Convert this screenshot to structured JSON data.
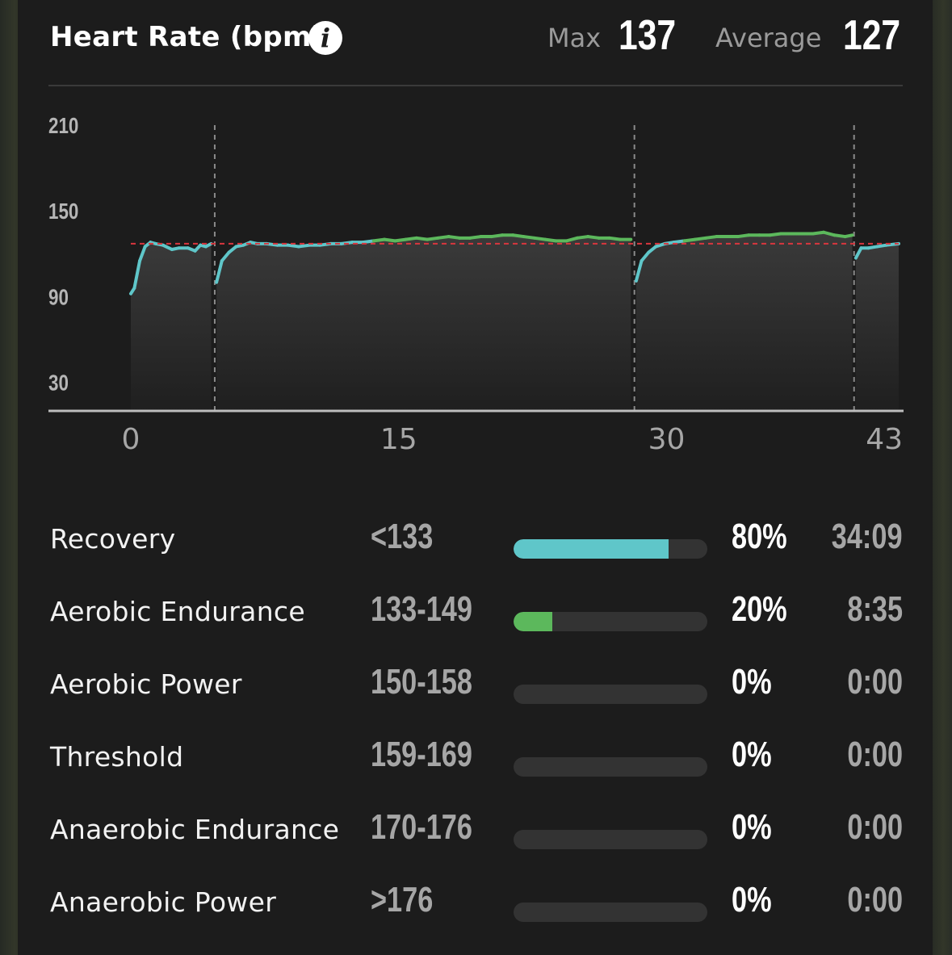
{
  "header": {
    "title": "Heart Rate (bpm)",
    "info_icon": "info-icon",
    "max_label": "Max",
    "max_value": "137",
    "average_label": "Average",
    "average_value": "127"
  },
  "chart_data": {
    "type": "line",
    "title": "Heart Rate (bpm)",
    "xlabel": "",
    "ylabel": "",
    "xlim": [
      0,
      43
    ],
    "ylim": [
      10,
      210
    ],
    "x_ticks": [
      0,
      15,
      30,
      43
    ],
    "y_ticks": [
      30,
      90,
      150,
      210
    ],
    "average_line": 127,
    "segment_breaks": [
      4.7,
      28.2,
      40.5
    ],
    "grid": false,
    "colors": {
      "below_133": "#5fc6c9",
      "aerobic_endurance": "#5cb85c",
      "average_line": "#d9363e"
    },
    "series": [
      {
        "x": [
          0,
          0.2,
          0.5,
          0.8,
          1.1,
          1.4,
          1.8,
          2.3,
          2.7,
          3.2,
          3.6,
          3.9,
          4.2,
          4.5,
          4.8,
          5.1,
          5.5,
          5.9,
          6.3,
          6.7,
          7.1,
          7.6,
          8.2,
          8.8,
          9.4,
          10,
          10.6,
          11.2,
          11.8,
          12.4,
          13,
          13.6,
          14.2,
          14.8,
          15.4,
          16,
          16.6,
          17.2,
          17.8,
          18.4,
          19,
          19.6,
          20.2,
          20.8,
          21.4,
          22,
          22.6,
          23.2,
          23.8,
          24.4,
          25,
          25.6,
          26.2,
          26.8,
          27.4,
          28,
          28.3,
          28.6,
          29,
          29.4,
          29.9,
          30.4,
          31,
          31.6,
          32.2,
          32.8,
          33.4,
          34,
          34.6,
          35.2,
          35.8,
          36.4,
          37,
          37.6,
          38.2,
          38.8,
          39.4,
          40,
          40.4,
          40.6,
          40.9,
          41.3,
          41.8,
          42.3,
          43
        ],
        "values": [
          92,
          96,
          115,
          125,
          128,
          127,
          126,
          123,
          124,
          124,
          122,
          126,
          125,
          127,
          100,
          115,
          121,
          125,
          126,
          128,
          127,
          127,
          126,
          126,
          125,
          126,
          126,
          127,
          127,
          128,
          128,
          129,
          130,
          129,
          130,
          131,
          130,
          131,
          132,
          131,
          131,
          132,
          132,
          133,
          133,
          132,
          131,
          130,
          129,
          129,
          131,
          132,
          131,
          131,
          130,
          130,
          101,
          115,
          121,
          125,
          127,
          128,
          129,
          130,
          131,
          132,
          132,
          132,
          133,
          133,
          133,
          134,
          134,
          134,
          134,
          135,
          133,
          132,
          133,
          117,
          124,
          124,
          125,
          126,
          127
        ]
      }
    ]
  },
  "zones": [
    {
      "name": "Recovery",
      "range": "<133",
      "fraction": 0.8,
      "percent": "80%",
      "time": "34:09",
      "color": "#5fc6c9"
    },
    {
      "name": "Aerobic Endurance",
      "range": "133-149",
      "fraction": 0.2,
      "percent": "20%",
      "time": "8:35",
      "color": "#5cb85c"
    },
    {
      "name": "Aerobic Power",
      "range": "150-158",
      "fraction": 0,
      "percent": "0%",
      "time": "0:00",
      "color": "#5cb85c"
    },
    {
      "name": "Threshold",
      "range": "159-169",
      "fraction": 0,
      "percent": "0%",
      "time": "0:00",
      "color": "#5cb85c"
    },
    {
      "name": "Anaerobic Endurance",
      "range": "170-176",
      "fraction": 0,
      "percent": "0%",
      "time": "0:00",
      "color": "#5cb85c"
    },
    {
      "name": "Anaerobic Power",
      "range": ">176",
      "fraction": 0,
      "percent": "0%",
      "time": "0:00",
      "color": "#5cb85c"
    }
  ]
}
